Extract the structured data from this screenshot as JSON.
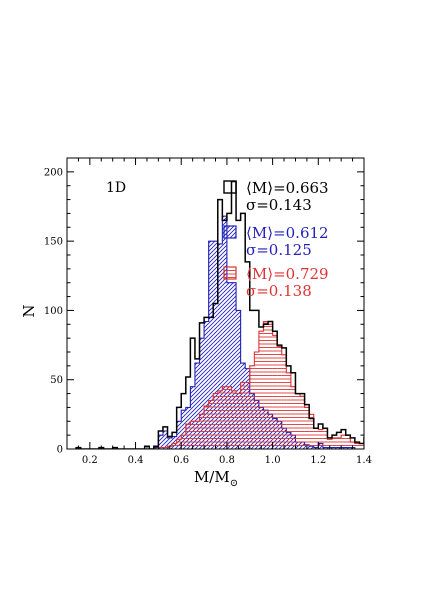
{
  "chart_data": {
    "type": "histogram",
    "panel_label": "1D",
    "xlabel": "M/M",
    "xlabel_subscript": "⊙",
    "ylabel": "N",
    "xlim": [
      0.1,
      1.4
    ],
    "ylim": [
      0,
      210
    ],
    "xticks": [
      0.2,
      0.4,
      0.6,
      0.8,
      1.0,
      1.2,
      1.4
    ],
    "xtick_labels": [
      "0.2",
      "0.4",
      "0.6",
      "0.8",
      "1.0",
      "1.2",
      "1.4"
    ],
    "yticks": [
      0,
      50,
      100,
      150,
      200
    ],
    "ytick_labels": [
      "0",
      "50",
      "100",
      "150",
      "200"
    ],
    "bin_width": 0.02,
    "bin_start": 0.14,
    "series": [
      {
        "style": "open",
        "color": "#000000",
        "legend_mean": "⟨M⟩=0.663",
        "legend_sigma": "σ=0.143",
        "values": [
          1,
          0,
          0,
          0,
          0,
          1,
          0,
          0,
          1,
          0,
          0,
          0,
          0,
          0,
          0,
          2,
          0,
          2,
          13,
          16,
          9,
          12,
          30,
          40,
          52,
          80,
          65,
          91,
          95,
          95,
          105,
          180,
          165,
          170,
          193,
          165,
          170,
          135,
          100,
          100,
          88,
          90,
          92,
          85,
          75,
          73,
          60,
          55,
          40,
          40,
          32,
          22,
          15,
          18,
          15,
          8,
          10,
          12,
          14,
          10,
          8,
          5,
          4,
          8,
          3,
          8,
          4,
          2,
          5,
          3,
          2,
          5,
          3,
          2,
          1,
          0
        ]
      },
      {
        "style": "hatch-diagonal",
        "color": "#2222bb",
        "legend_mean": "⟨M⟩=0.612",
        "legend_sigma": "σ=0.125",
        "values": [
          0,
          0,
          0,
          0,
          0,
          0,
          0,
          0,
          0,
          0,
          0,
          0,
          0,
          0,
          0,
          0,
          0,
          1,
          10,
          13,
          8,
          9,
          20,
          28,
          30,
          45,
          62,
          80,
          92,
          150,
          150,
          148,
          168,
          120,
          120,
          100,
          62,
          58,
          40,
          35,
          30,
          28,
          25,
          22,
          20,
          15,
          12,
          10,
          5,
          5,
          3,
          2,
          1,
          4,
          1,
          1,
          1,
          1,
          1,
          1,
          1,
          0,
          0,
          1,
          0,
          0,
          0,
          0,
          1,
          0,
          0,
          3,
          0,
          1,
          0
        ]
      },
      {
        "style": "hatch-horizontal",
        "color": "#dd3333",
        "legend_mean": "⟨M⟩=0.729",
        "legend_sigma": "σ=0.138",
        "values": [
          1,
          0,
          0,
          0,
          0,
          1,
          0,
          0,
          0,
          0,
          0,
          0,
          0,
          0,
          0,
          0,
          0,
          0,
          1,
          1,
          2,
          4,
          7,
          10,
          18,
          20,
          20,
          25,
          31,
          35,
          40,
          42,
          45,
          45,
          42,
          40,
          48,
          48,
          60,
          70,
          85,
          92,
          90,
          82,
          74,
          68,
          55,
          45,
          40,
          38,
          30,
          25,
          15,
          14,
          15,
          7,
          8,
          8,
          10,
          10,
          5,
          4,
          4,
          8,
          3,
          6,
          4,
          2,
          3,
          2,
          2,
          1,
          2,
          1,
          0,
          0
        ]
      }
    ]
  }
}
